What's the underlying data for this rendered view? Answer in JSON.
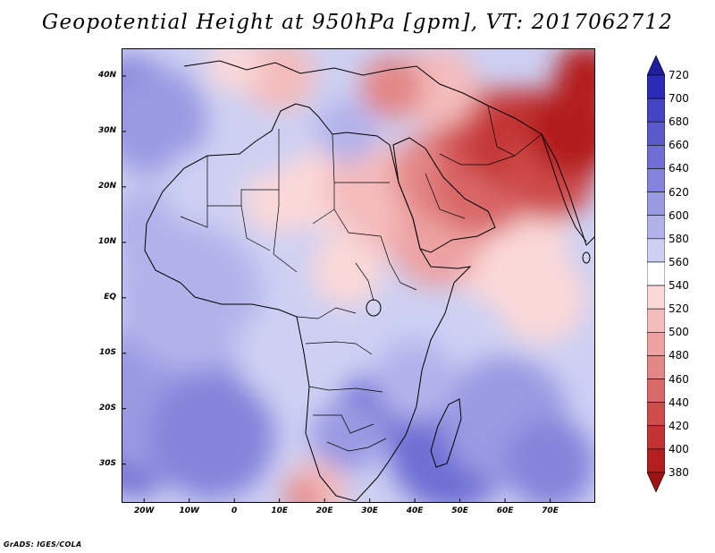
{
  "title": "Geopotential Height at 950hPa [gpm], VT: 2017062712",
  "credit": "GrADS: IGES/COLA",
  "map": {
    "region": "Africa, Arabian Peninsula, Western Indian Ocean",
    "lon_range": [
      -25,
      80
    ],
    "lat_range": [
      -37,
      45
    ]
  },
  "lat_labels": [
    {
      "text": "40N",
      "lat": 40
    },
    {
      "text": "30N",
      "lat": 30
    },
    {
      "text": "20N",
      "lat": 20
    },
    {
      "text": "10N",
      "lat": 10
    },
    {
      "text": "EQ",
      "lat": 0
    },
    {
      "text": "10S",
      "lat": -10
    },
    {
      "text": "20S",
      "lat": -20
    },
    {
      "text": "30S",
      "lat": -30
    }
  ],
  "lon_labels": [
    {
      "text": "20W",
      "lon": -20
    },
    {
      "text": "10W",
      "lon": -10
    },
    {
      "text": "0",
      "lon": 0
    },
    {
      "text": "10E",
      "lon": 10
    },
    {
      "text": "20E",
      "lon": 20
    },
    {
      "text": "30E",
      "lon": 30
    },
    {
      "text": "40E",
      "lon": 40
    },
    {
      "text": "50E",
      "lon": 50
    },
    {
      "text": "60E",
      "lon": 60
    },
    {
      "text": "70E",
      "lon": 70
    }
  ],
  "colorbar": {
    "levels": [
      "720",
      "700",
      "680",
      "660",
      "640",
      "620",
      "600",
      "580",
      "560",
      "540",
      "520",
      "500",
      "480",
      "460",
      "440",
      "420",
      "400",
      "380"
    ],
    "colors": [
      "#1f1f9e",
      "#2b2bb8",
      "#4444c4",
      "#5a5acc",
      "#6e6ed4",
      "#8484dc",
      "#9a9ae3",
      "#b2b2eb",
      "#cdd0f3",
      "#ffffff",
      "#fbd8d8",
      "#f4bcbc",
      "#eda2a2",
      "#e38686",
      "#d96868",
      "#cf4c4c",
      "#c23434",
      "#b31f1f",
      "#9e1414"
    ]
  },
  "field_blobs": [
    {
      "lon": -22,
      "lat": -28,
      "r": 9,
      "color": "#3a3ac0"
    },
    {
      "lon": -22,
      "lat": -22,
      "r": 14,
      "color": "#6e6ed4"
    },
    {
      "lon": -15,
      "lat": -18,
      "r": 18,
      "color": "#9a9ae3"
    },
    {
      "lon": -5,
      "lat": -25,
      "r": 14,
      "color": "#8484dc"
    },
    {
      "lon": -22,
      "lat": 36,
      "r": 9,
      "color": "#6e6ed4"
    },
    {
      "lon": -18,
      "lat": 32,
      "r": 12,
      "color": "#9a9ae3"
    },
    {
      "lon": -10,
      "lat": 0,
      "r": 16,
      "color": "#b2b2eb"
    },
    {
      "lon": -18,
      "lat": 12,
      "r": 10,
      "color": "#b2b2eb"
    },
    {
      "lon": 50,
      "lat": -30,
      "r": 8,
      "color": "#3a3ac0"
    },
    {
      "lon": 48,
      "lat": -27,
      "r": 14,
      "color": "#6e6ed4"
    },
    {
      "lon": 60,
      "lat": -22,
      "r": 14,
      "color": "#9a9ae3"
    },
    {
      "lon": 70,
      "lat": -30,
      "r": 10,
      "color": "#8484dc"
    },
    {
      "lon": 30,
      "lat": -20,
      "r": 7,
      "color": "#6e6ed4"
    },
    {
      "lon": 25,
      "lat": -25,
      "r": 8,
      "color": "#9a9ae3"
    },
    {
      "lon": 40,
      "lat": -15,
      "r": 9,
      "color": "#b2b2eb"
    },
    {
      "lon": 10,
      "lat": -10,
      "r": 10,
      "color": "#cdd0f3"
    },
    {
      "lon": 18,
      "lat": -35,
      "r": 7,
      "color": "#f4bcbc"
    },
    {
      "lon": 15,
      "lat": -36,
      "r": 4,
      "color": "#e38686"
    },
    {
      "lon": 60,
      "lat": 10,
      "r": 14,
      "color": "#fbd8d8"
    },
    {
      "lon": 68,
      "lat": 0,
      "r": 10,
      "color": "#fbd8d8"
    },
    {
      "lon": 25,
      "lat": 5,
      "r": 8,
      "color": "#fbd8d8"
    },
    {
      "lon": 22,
      "lat": 20,
      "r": 10,
      "color": "#fbd8d8"
    },
    {
      "lon": 10,
      "lat": 18,
      "r": 8,
      "color": "#fbd8d8"
    },
    {
      "lon": 30,
      "lat": 20,
      "r": 10,
      "color": "#f4bcbc"
    },
    {
      "lon": 35,
      "lat": 15,
      "r": 9,
      "color": "#f4bcbc"
    },
    {
      "lon": 45,
      "lat": 10,
      "r": 10,
      "color": "#eda2a2"
    },
    {
      "lon": 45,
      "lat": 22,
      "r": 10,
      "color": "#e38686"
    },
    {
      "lon": 55,
      "lat": 20,
      "r": 11,
      "color": "#d96868"
    },
    {
      "lon": 55,
      "lat": 30,
      "r": 10,
      "color": "#cf4c4c"
    },
    {
      "lon": 65,
      "lat": 28,
      "r": 12,
      "color": "#c23434"
    },
    {
      "lon": 70,
      "lat": 22,
      "r": 10,
      "color": "#cf4c4c"
    },
    {
      "lon": 75,
      "lat": 30,
      "r": 10,
      "color": "#b31f1f"
    },
    {
      "lon": 78,
      "lat": 40,
      "r": 7,
      "color": "#b31f1f"
    },
    {
      "lon": 45,
      "lat": 38,
      "r": 9,
      "color": "#f4bcbc"
    },
    {
      "lon": 35,
      "lat": 38,
      "r": 7,
      "color": "#e38686"
    },
    {
      "lon": 10,
      "lat": 40,
      "r": 8,
      "color": "#f4bcbc"
    },
    {
      "lon": 0,
      "lat": 42,
      "r": 6,
      "color": "#fbd8d8"
    },
    {
      "lon": 25,
      "lat": 30,
      "r": 7,
      "color": "#b2b2eb"
    },
    {
      "lon": 5,
      "lat": 28,
      "r": 8,
      "color": "#cdd0f3"
    },
    {
      "lon": -8,
      "lat": 20,
      "r": 8,
      "color": "#cdd0f3"
    }
  ]
}
